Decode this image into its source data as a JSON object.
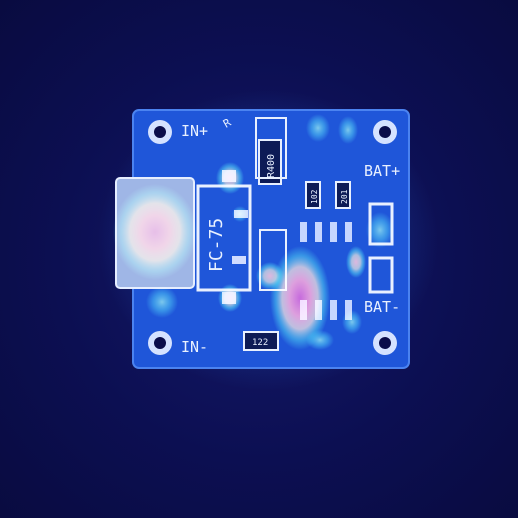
{
  "board": {
    "in_plus": "IN+",
    "in_minus": "IN-",
    "bat_plus": "BAT+",
    "bat_minus": "BAT-",
    "model": "FC-75",
    "resistor_r400": "R400",
    "resistor_122": "122",
    "resistor_102": "102",
    "resistor_201": "201",
    "chip_mark": "R"
  },
  "colors": {
    "background": "#0b0d4a",
    "pcb": "#1f56d9",
    "silkscreen": "#e8f0ff",
    "heat_hot": "#d8301a",
    "heat_warm": "#f2d23a",
    "heat_cool": "#3fd6c2"
  }
}
